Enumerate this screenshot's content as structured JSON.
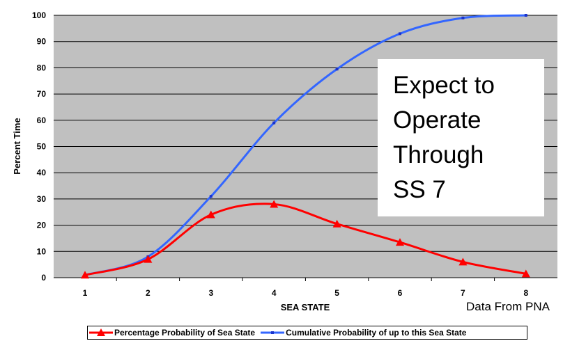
{
  "chart_data": {
    "type": "line",
    "xlabel": "SEA STATE",
    "ylabel": "Percent Time",
    "x": [
      1,
      2,
      3,
      4,
      5,
      6,
      7,
      8
    ],
    "ylim": [
      0,
      100
    ],
    "yticks": [
      0,
      10,
      20,
      30,
      40,
      50,
      60,
      70,
      80,
      90,
      100
    ],
    "grid": "horizontal",
    "legend_position": "bottom",
    "series": [
      {
        "name": "Percentage Probability of Sea State",
        "color": "#ff0000",
        "marker": "triangle",
        "values": [
          1,
          7,
          24,
          28,
          20.5,
          13.5,
          6,
          1.5
        ]
      },
      {
        "name": "Cumulative Probability of up to this Sea State",
        "color": "#3366ff",
        "marker": "square",
        "values": [
          1,
          8,
          31,
          59,
          79.5,
          93,
          99,
          100
        ]
      }
    ],
    "annotations": {
      "note_lines": [
        "Expect to",
        "Operate",
        "Through",
        "SS 7"
      ],
      "source": "Data From PNA"
    }
  },
  "colors": {
    "plot_background": "#c0c0c0",
    "grid": "#000000"
  }
}
